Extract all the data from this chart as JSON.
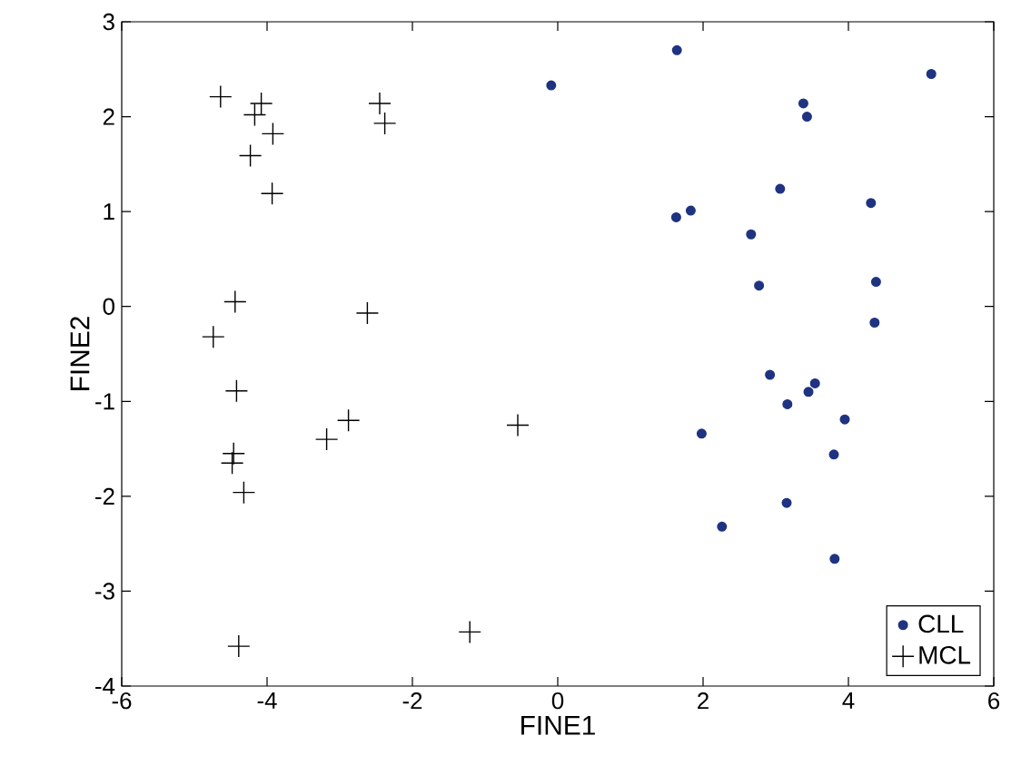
{
  "chart_data": {
    "type": "scatter",
    "xlabel": "FINE1",
    "ylabel": "FINE2",
    "xlim": [
      -6,
      6
    ],
    "ylim": [
      -4,
      3
    ],
    "xticks": [
      -6,
      -4,
      -2,
      0,
      2,
      4,
      6
    ],
    "yticks": [
      -4,
      -3,
      -2,
      -1,
      0,
      1,
      2,
      3
    ],
    "grid": false,
    "legend": "bottom right",
    "series": [
      {
        "name": "CLL",
        "color": "#1f3381",
        "marker": "circle",
        "x": [
          -0.09,
          1.64,
          3.38,
          3.43,
          5.14,
          3.06,
          1.63,
          1.83,
          2.66,
          4.31,
          2.77,
          4.38,
          4.36,
          2.92,
          3.54,
          3.45,
          3.16,
          3.95,
          1.98,
          3.8,
          3.15,
          2.26,
          3.81
        ],
        "values": [
          2.33,
          2.7,
          2.14,
          2.0,
          2.45,
          1.24,
          0.94,
          1.01,
          0.76,
          1.09,
          0.22,
          0.26,
          -0.17,
          -0.72,
          -0.81,
          -0.9,
          -1.03,
          -1.19,
          -1.34,
          -1.56,
          -2.07,
          -2.32,
          -2.66
        ]
      },
      {
        "name": "MCL",
        "color": "#000000",
        "marker": "cross",
        "x": [
          -4.64,
          -4.08,
          -4.17,
          -3.92,
          -4.23,
          -3.93,
          -2.45,
          -2.38,
          -4.44,
          -4.74,
          -2.62,
          -4.42,
          -2.88,
          -3.18,
          -0.55,
          -4.46,
          -4.48,
          -4.32,
          -4.39,
          -1.21
        ],
        "values": [
          2.21,
          2.14,
          2.02,
          1.82,
          1.59,
          1.19,
          2.14,
          1.93,
          0.05,
          -0.32,
          -0.07,
          -0.89,
          -1.2,
          -1.4,
          -1.25,
          -1.55,
          -1.65,
          -1.96,
          -3.58,
          -3.43
        ]
      }
    ]
  }
}
